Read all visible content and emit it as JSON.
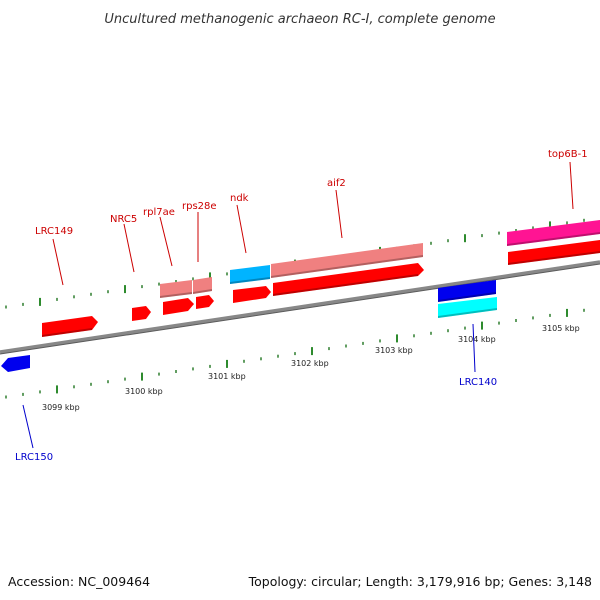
{
  "title": "Uncultured methanogenic archaeon RC-I, complete genome",
  "footer": {
    "accession": "Accession: NC_009464",
    "summary": "Topology: circular; Length: 3,179,916 bp; Genes: 3,148"
  },
  "colors": {
    "forward_cds": "#ff0000",
    "forward_gene_light": "#f08080",
    "reverse_cds": "#0000ee",
    "reverse_gene_light": "#00ffff",
    "ndk_gene": "#00b4ff",
    "top6b_gene": "#ff1493",
    "label_forward": "#cc0000",
    "label_reverse": "#0000cc",
    "backbone": "#888888",
    "tick_major": "#2e8b2e",
    "tick_minor": "#2e7d2e"
  },
  "axis": {
    "unit": "kbp",
    "tick_labels": [
      "3099 kbp",
      "3100 kbp",
      "3101 kbp",
      "3102 kbp",
      "3103 kbp",
      "3104 kbp",
      "3105 kbp"
    ]
  },
  "genes": [
    {
      "label": "LRC150",
      "strand": "reverse",
      "icon": "arrow-left"
    },
    {
      "label": "LRC149",
      "strand": "forward",
      "icon": "arrow-right"
    },
    {
      "label": "NRC5",
      "strand": "forward",
      "icon": "arrow-right"
    },
    {
      "label": "rpl7ae",
      "strand": "forward",
      "icon": "arrow-right"
    },
    {
      "label": "rps28e",
      "strand": "forward",
      "icon": "arrow-right"
    },
    {
      "label": "ndk",
      "strand": "forward",
      "icon": "arrow-right"
    },
    {
      "label": "aif2",
      "strand": "forward",
      "icon": "arrow-right"
    },
    {
      "label": "LRC140",
      "strand": "reverse",
      "icon": "arrow-left"
    },
    {
      "label": "top6B-1",
      "strand": "forward",
      "icon": "arrow-right"
    }
  ]
}
